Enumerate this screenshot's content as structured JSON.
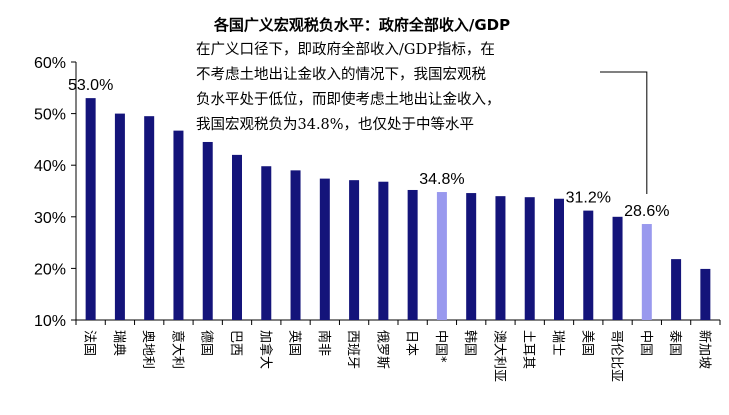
{
  "chart_data": {
    "type": "bar",
    "title": "各国广义宏观税负水平：政府全部收入/GDP",
    "categories": [
      "法国",
      "瑞典",
      "奥地利",
      "意大利",
      "德国",
      "巴西",
      "加拿大",
      "英国",
      "南非",
      "西班牙",
      "俄罗斯",
      "日本",
      "中国*",
      "韩国",
      "澳大利亚",
      "土耳其",
      "瑞士",
      "美国",
      "哥伦比亚",
      "中国",
      "泰国",
      "新加坡"
    ],
    "values": [
      53.0,
      50.0,
      49.5,
      46.7,
      44.5,
      42.0,
      39.8,
      39.0,
      37.4,
      37.1,
      36.8,
      35.2,
      34.8,
      34.6,
      34.0,
      33.8,
      33.5,
      31.2,
      30.0,
      28.6,
      21.8,
      19.9
    ],
    "ylim": [
      10,
      60
    ],
    "yticks": [
      "10%",
      "20%",
      "30%",
      "40%",
      "50%",
      "60%"
    ],
    "ytick_values": [
      10,
      20,
      30,
      40,
      50,
      60
    ],
    "data_labels": [
      {
        "index": 0,
        "text": "53.0%"
      },
      {
        "index": 12,
        "text": "34.8%"
      },
      {
        "index": 17,
        "text": "31.2%"
      },
      {
        "index": 19,
        "text": "28.6%"
      }
    ],
    "highlight_indices": [
      12,
      19
    ],
    "colors": {
      "bar": "#14147a",
      "highlight": "#9999ee",
      "axis": "#000000"
    },
    "annotation": {
      "lines": [
        "在广义口径下，即政府全部收入/GDP指标，在",
        "不考虑土地出让金收入的情况下，我国宏观税",
        "负水平处于低位，而即使考虑土地出让金收入，",
        "我国宏观税负为34.8%，也仅处于中等水平"
      ],
      "points_to_index": 19
    },
    "grid": false,
    "legend": "none"
  }
}
